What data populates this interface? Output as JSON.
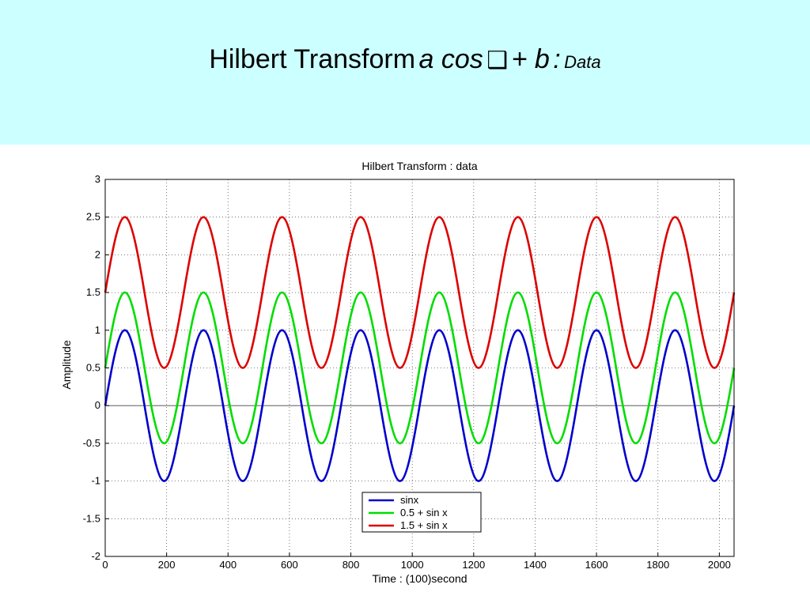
{
  "slide": {
    "title_main": "Hilbert Transform",
    "title_italic": "a cos",
    "title_symbol": "❑",
    "title_plus": "+ b",
    "title_colon": ":",
    "title_small": "Data"
  },
  "colors": {
    "header_bg": "#ccffff",
    "series_blue": "#0000cc",
    "series_green": "#00dd00",
    "series_red": "#dd0000",
    "grid": "#555555"
  },
  "chart_data": {
    "type": "line",
    "title": "Hilbert Transform : data",
    "xlabel": "Time : (100)second",
    "ylabel": "Amplitude",
    "xlim": [
      0,
      2048
    ],
    "ylim": [
      -2,
      3
    ],
    "xticks": [
      0,
      200,
      400,
      600,
      800,
      1000,
      1200,
      1400,
      1600,
      1800,
      2000
    ],
    "yticks": [
      -2,
      -1.5,
      -1,
      -0.5,
      0,
      0.5,
      1,
      1.5,
      2,
      2.5,
      3
    ],
    "xtick_labels": [
      "0",
      "200",
      "400",
      "600",
      "800",
      "1000",
      "1200",
      "1400",
      "1600",
      "1800",
      "2000"
    ],
    "ytick_labels": [
      "-2",
      "-1.5",
      "-1",
      "-0.5",
      "0",
      "0.5",
      "1",
      "1.5",
      "2",
      "2.5",
      "3"
    ],
    "grid": true,
    "legend_position": "bottom-center",
    "period": 256,
    "x_points": [
      0,
      64,
      128,
      192,
      256,
      320,
      384,
      448,
      512,
      576,
      640,
      704,
      768,
      832,
      896,
      960,
      1024,
      1088,
      1152,
      1216,
      1280,
      1344,
      1408,
      1472,
      1536,
      1600,
      1664,
      1728,
      1792,
      1856,
      1920,
      1984,
      2048
    ],
    "series": [
      {
        "name": "sinx",
        "color": "#0000cc",
        "values": [
          0,
          1,
          0,
          -1,
          0,
          1,
          0,
          -1,
          0,
          1,
          0,
          -1,
          0,
          1,
          0,
          -1,
          0,
          1,
          0,
          -1,
          0,
          1,
          0,
          -1,
          0,
          1,
          0,
          -1,
          0,
          1,
          0,
          -1,
          0
        ]
      },
      {
        "name": "0.5 + sin x",
        "color": "#00dd00",
        "values": [
          0.5,
          1.5,
          0.5,
          -0.5,
          0.5,
          1.5,
          0.5,
          -0.5,
          0.5,
          1.5,
          0.5,
          -0.5,
          0.5,
          1.5,
          0.5,
          -0.5,
          0.5,
          1.5,
          0.5,
          -0.5,
          0.5,
          1.5,
          0.5,
          -0.5,
          0.5,
          1.5,
          0.5,
          -0.5,
          0.5,
          1.5,
          0.5,
          -0.5,
          0.5
        ]
      },
      {
        "name": "1.5 + sin x",
        "color": "#dd0000",
        "values": [
          1.5,
          2.5,
          1.5,
          0.5,
          1.5,
          2.5,
          1.5,
          0.5,
          1.5,
          2.5,
          1.5,
          0.5,
          1.5,
          2.5,
          1.5,
          0.5,
          1.5,
          2.5,
          1.5,
          0.5,
          1.5,
          2.5,
          1.5,
          0.5,
          1.5,
          2.5,
          1.5,
          0.5,
          1.5,
          2.5,
          1.5,
          0.5,
          1.5
        ]
      }
    ]
  }
}
